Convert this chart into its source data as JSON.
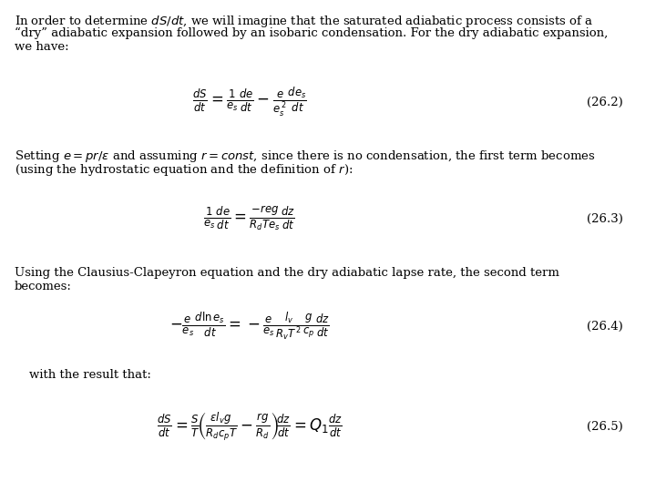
{
  "background_color": "#ffffff",
  "text_color": "#000000",
  "fig_width": 7.2,
  "fig_height": 5.4,
  "dpi": 100,
  "paragraph1_line1": "In order to determine $dS/dt$, we will imagine that the saturated adiabatic process consists of a",
  "paragraph1_line2": "“dry” adiabatic expansion followed by an isobaric condensation. For the dry adiabatic expansion,",
  "paragraph1_line3": "we have:",
  "eq1": "$\\frac{dS}{dt} = \\frac{1}{e_s}\\frac{de}{dt} - \\frac{e}{e_s^{\\,2}}\\frac{de_s}{dt}$",
  "eq1_label": "(26.2)",
  "paragraph2_line1": "Setting $e{=}pr/\\varepsilon$ and assuming $r{=}const$, since there is no condensation, the first term becomes",
  "paragraph2_line2": "(using the hydrostatic equation and the definition of $r$):",
  "eq2": "$\\frac{1}{e_s}\\frac{de}{dt} = \\frac{-reg}{R_dTe_s}\\frac{dz}{dt}$",
  "eq2_label": "(26.3)",
  "paragraph3_line1": "Using the Clausius-Clapeyron equation and the dry adiabatic lapse rate, the second term",
  "paragraph3_line2": "becomes:",
  "eq3": "$-\\frac{e}{e_s}\\frac{d\\ln e_s}{dt} = -\\frac{e}{e_s}\\frac{l_v}{R_vT^{\\,2}}\\frac{g}{c_p}\\frac{dz}{dt}$",
  "eq3_label": "(26.4)",
  "paragraph4": "with the result that:",
  "eq4": "$\\frac{dS}{dt} = \\frac{S}{T}\\!\\left(\\frac{\\varepsilon l_v g}{R_d c_p T} - \\frac{rg}{R_d}\\right)\\!\\frac{dz}{dt} = Q_1\\frac{dz}{dt}$",
  "eq4_label": "(26.5)"
}
